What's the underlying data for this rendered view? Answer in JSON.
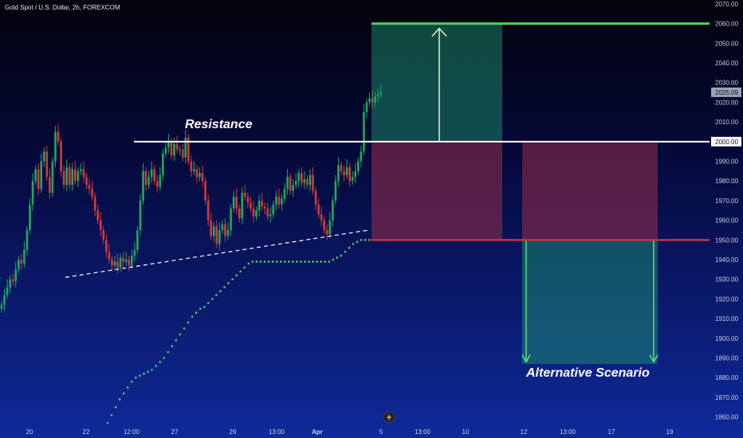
{
  "chart_data": {
    "type": "candlestick",
    "title": "Gold Spot / U.S. Dollar, 2h, FOREXCOM",
    "ylim": [
      1855,
      2072
    ],
    "y_ticks": [
      1860,
      1870,
      1880,
      1890,
      1900,
      1910,
      1920,
      1930,
      1940,
      1950,
      1960,
      1970,
      1980,
      1990,
      2000,
      2010,
      2020,
      2030,
      2040,
      2050,
      2060,
      2070
    ],
    "x_tick_labels": [
      "20",
      "22",
      "12:00",
      "27",
      "29",
      "13:00",
      "Apr",
      "5",
      "13:00",
      "10",
      "12",
      "13:00",
      "17",
      "19"
    ],
    "last_price": 2025.09,
    "price_labels": [
      "2025.09",
      "2000.00"
    ],
    "levels": {
      "resistance": 2000,
      "support": 1950,
      "target": 2060
    },
    "annotations": {
      "resistance": "Resistance",
      "alternative": "Alternative Scenario"
    },
    "closes": [
      1917,
      1922,
      1926,
      1930,
      1929,
      1935,
      1940,
      1938,
      1945,
      1955,
      1968,
      1980,
      1986,
      1976,
      1990,
      1995,
      1982,
      1974,
      1990,
      2005,
      2000,
      1985,
      1978,
      1987,
      1978,
      1986,
      1980,
      1985,
      1986,
      1982,
      1978,
      1976,
      1972,
      1965,
      1960,
      1955,
      1950,
      1944,
      1940,
      1937,
      1939,
      1936,
      1941,
      1939,
      1940,
      1937,
      1942,
      1945,
      1955,
      1970,
      1985,
      1978,
      1982,
      1986,
      1980,
      1977,
      1983,
      1994,
      1997,
      2000,
      1993,
      1999,
      1996,
      1996,
      1992,
      2002,
      1990,
      1985,
      1986,
      1982,
      1984,
      1980,
      1970,
      1960,
      1952,
      1957,
      1948,
      1955,
      1958,
      1952,
      1955,
      1966,
      1972,
      1966,
      1961,
      1974,
      1972,
      1969,
      1966,
      1962,
      1965,
      1970,
      1967,
      1966,
      1962,
      1963,
      1968,
      1972,
      1968,
      1971,
      1976,
      1982,
      1975,
      1978,
      1980,
      1984,
      1979,
      1981,
      1978,
      1983,
      1975,
      1968,
      1963,
      1960,
      1955,
      1953,
      1960,
      1970,
      1980,
      1988,
      1985,
      1983,
      1987,
      1980,
      1982,
      1985,
      1990,
      1995,
      2015,
      2020,
      2022,
      2020,
      2023,
      2024,
      2025.09
    ],
    "sar": [
      1857,
      1861,
      1865,
      1869,
      1872,
      1875,
      1878,
      1880,
      1881,
      1882,
      1883,
      1884,
      1886,
      1888,
      1890,
      1893,
      1896,
      1899,
      1902,
      1905,
      1908,
      1911,
      1913,
      1915,
      1916,
      1918,
      1920,
      1922,
      1924,
      1926,
      1928,
      1930,
      1932,
      1934,
      1936,
      1938,
      1939,
      1939,
      1939,
      1939,
      1939,
      1939,
      1939,
      1939,
      1939,
      1939,
      1939,
      1939,
      1939,
      1939,
      1939,
      1939,
      1939,
      1939,
      1939,
      1939,
      1940,
      1941,
      1942,
      1944,
      1946,
      1948,
      1949,
      1950,
      1950,
      1950,
      1950,
      1950,
      1950,
      1950,
      1950,
      1950
    ]
  }
}
